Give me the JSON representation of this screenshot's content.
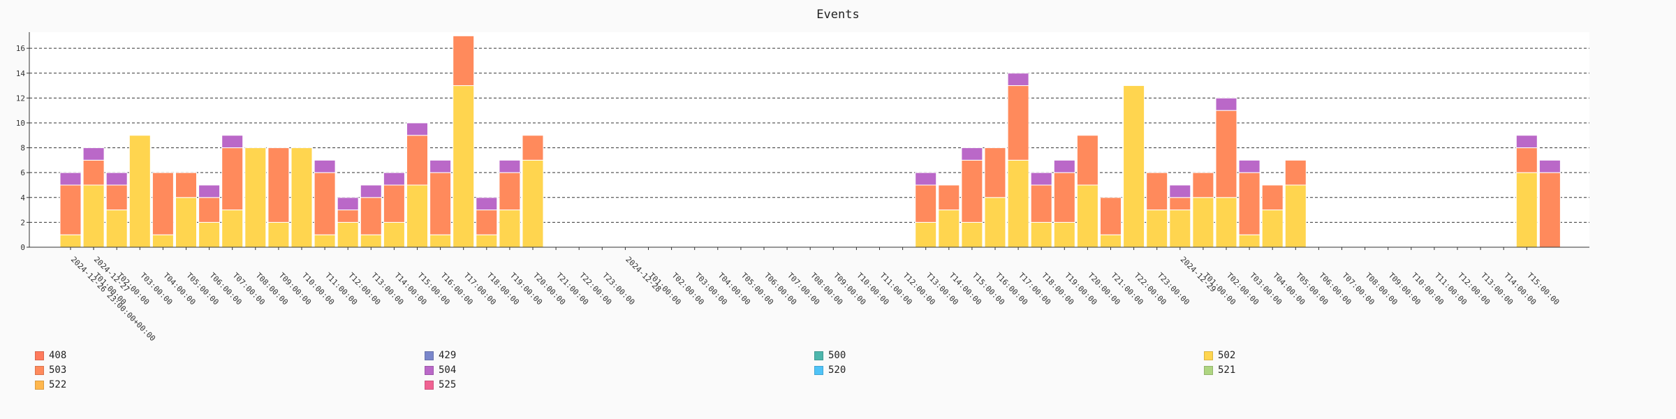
{
  "chart_data": {
    "type": "bar",
    "stacked": true,
    "title": "Events",
    "xlabel": "",
    "ylabel": "",
    "ylim": [
      0,
      17.3
    ],
    "y_ticks": [
      0,
      2,
      4,
      6,
      8,
      10,
      12,
      14,
      16
    ],
    "grid": "horizontal-dashed",
    "legend_position": "bottom",
    "x_start": "2024-12-26T23:00:00+00:00",
    "x_step_hours": 1,
    "x_count": 65,
    "x_tick_labels": [
      "2024-12-26 23:00:00+00:00",
      "2024-12-27",
      "T01:00:00",
      "T02:00:00",
      "T03:00:00",
      "T04:00:00",
      "T05:00:00",
      "T06:00:00",
      "T07:00:00",
      "T08:00:00",
      "T09:00:00",
      "T10:00:00",
      "T11:00:00",
      "T12:00:00",
      "T13:00:00",
      "T14:00:00",
      "T15:00:00",
      "T16:00:00",
      "T17:00:00",
      "T18:00:00",
      "T19:00:00",
      "T20:00:00",
      "T21:00:00",
      "T22:00:00",
      "T23:00:00",
      "2024-12-28",
      "T01:00:00",
      "T02:00:00",
      "T03:00:00",
      "T04:00:00",
      "T05:00:00",
      "T06:00:00",
      "T07:00:00",
      "T08:00:00",
      "T09:00:00",
      "T10:00:00",
      "T11:00:00",
      "T12:00:00",
      "T13:00:00",
      "T14:00:00",
      "T15:00:00",
      "T16:00:00",
      "T17:00:00",
      "T18:00:00",
      "T19:00:00",
      "T20:00:00",
      "T21:00:00",
      "T22:00:00",
      "T23:00:00",
      "2024-12-29",
      "T01:00:00",
      "T02:00:00",
      "T03:00:00",
      "T04:00:00",
      "T05:00:00",
      "T06:00:00",
      "T07:00:00",
      "T08:00:00",
      "T09:00:00",
      "T10:00:00",
      "T11:00:00",
      "T12:00:00",
      "T13:00:00",
      "T14:00:00",
      "T15:00:00"
    ],
    "series": [
      {
        "name": "502",
        "color": "#ffd54f",
        "values": [
          1,
          5,
          3,
          9,
          1,
          4,
          2,
          3,
          8,
          2,
          8,
          1,
          2,
          1,
          2,
          5,
          1,
          13,
          1,
          3,
          7,
          0,
          0,
          0,
          0,
          0,
          0,
          0,
          0,
          0,
          0,
          0,
          0,
          0,
          0,
          0,
          0,
          2,
          3,
          2,
          4,
          7,
          2,
          2,
          5,
          1,
          13,
          3,
          3,
          4,
          4,
          1,
          3,
          5,
          0,
          0,
          0,
          0,
          0,
          0,
          0,
          0,
          0,
          6,
          0
        ]
      },
      {
        "name": "503",
        "color": "#ff8a5c",
        "values": [
          4,
          2,
          2,
          0,
          5,
          2,
          2,
          5,
          0,
          6,
          0,
          5,
          1,
          3,
          3,
          4,
          5,
          4,
          2,
          3,
          2,
          0,
          0,
          0,
          0,
          0,
          0,
          0,
          0,
          0,
          0,
          0,
          0,
          0,
          0,
          0,
          0,
          3,
          2,
          5,
          4,
          6,
          3,
          4,
          4,
          3,
          0,
          3,
          1,
          2,
          7,
          5,
          2,
          2,
          0,
          0,
          0,
          0,
          0,
          0,
          0,
          0,
          0,
          2,
          6
        ]
      },
      {
        "name": "504",
        "color": "#ba68c8",
        "values": [
          1,
          1,
          1,
          0,
          0,
          0,
          1,
          1,
          0,
          0,
          0,
          1,
          1,
          1,
          1,
          1,
          1,
          0,
          1,
          1,
          0,
          0,
          0,
          0,
          0,
          0,
          0,
          0,
          0,
          0,
          0,
          0,
          0,
          0,
          0,
          0,
          0,
          1,
          0,
          1,
          0,
          1,
          1,
          1,
          0,
          0,
          0,
          0,
          1,
          0,
          1,
          1,
          0,
          0,
          0,
          0,
          0,
          0,
          0,
          0,
          0,
          0,
          0,
          1,
          1
        ]
      }
    ],
    "legend": [
      {
        "name": "408",
        "color": "#ff7a5c"
      },
      {
        "name": "429",
        "color": "#7986cb"
      },
      {
        "name": "500",
        "color": "#4db6ac"
      },
      {
        "name": "502",
        "color": "#ffd54f"
      },
      {
        "name": "503",
        "color": "#ff8a5c"
      },
      {
        "name": "504",
        "color": "#ba68c8"
      },
      {
        "name": "520",
        "color": "#4fc3f7"
      },
      {
        "name": "521",
        "color": "#aed581"
      },
      {
        "name": "522",
        "color": "#ffb74d"
      },
      {
        "name": "525",
        "color": "#f06292"
      }
    ]
  }
}
